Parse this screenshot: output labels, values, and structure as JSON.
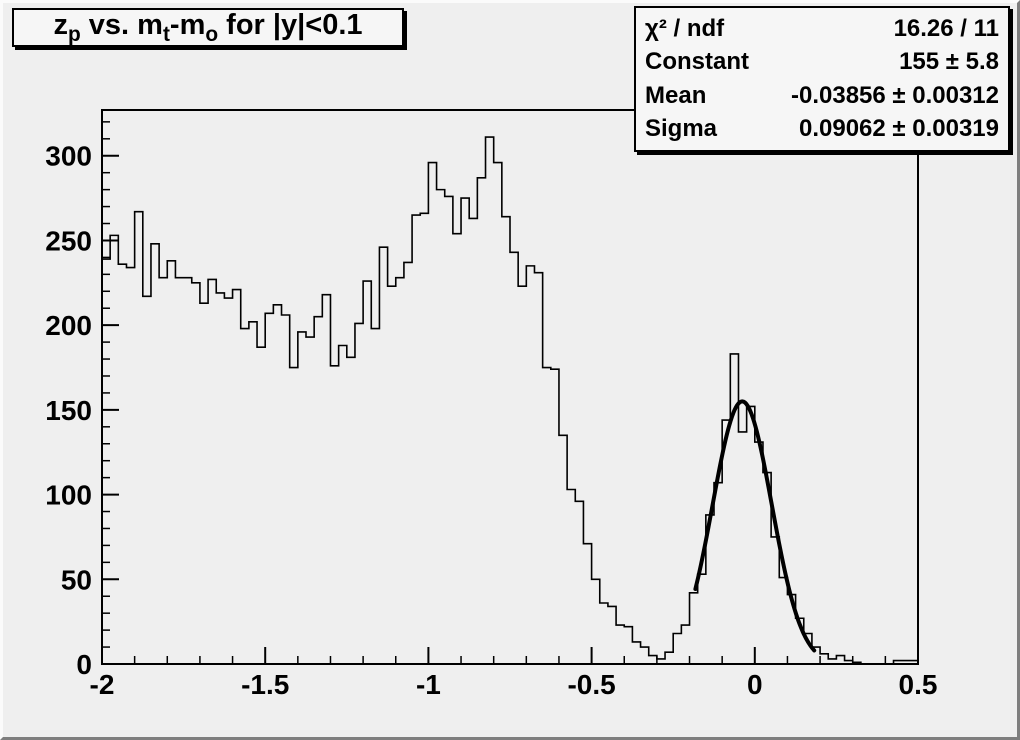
{
  "canvas": {
    "background": "#efefef",
    "box_background": "#f6f6f6",
    "line_color": "#000000"
  },
  "title": {
    "text": "z_p vs. m_t-m_o for |y|<0.1",
    "parts": [
      {
        "t": "z"
      },
      {
        "t": "p",
        "sub": true
      },
      {
        "t": " vs. m"
      },
      {
        "t": "t",
        "sub": true
      },
      {
        "t": "-m"
      },
      {
        "t": "o",
        "sub": true
      },
      {
        "t": " for |y|<0.1"
      }
    ]
  },
  "stats": {
    "rows": [
      {
        "label": "χ² / ndf",
        "value": "16.26 / 11"
      },
      {
        "label": "Constant",
        "value": "155 ± 5.8"
      },
      {
        "label": "Mean",
        "value": "-0.03856 ± 0.00312"
      },
      {
        "label": "Sigma",
        "value": "0.09062 ± 0.00319"
      }
    ]
  },
  "chart_data": {
    "type": "bar",
    "style": "root-histogram-step",
    "title": "z_p vs. m_t-m_o for |y|<0.1",
    "xlabel": "",
    "ylabel": "",
    "xlim": [
      -2.0,
      0.5
    ],
    "ylim": [
      0,
      327
    ],
    "grid": false,
    "x_start": -2.0,
    "bin_width": 0.025,
    "values": [
      239,
      253,
      236,
      234,
      267,
      217,
      248,
      228,
      238,
      228,
      228,
      225,
      213,
      227,
      219,
      216,
      221,
      198,
      202,
      187,
      207,
      212,
      206,
      175,
      196,
      193,
      205,
      218,
      176,
      188,
      181,
      201,
      226,
      198,
      246,
      223,
      228,
      237,
      265,
      266,
      296,
      280,
      276,
      254,
      275,
      263,
      287,
      311,
      296,
      264,
      243,
      223,
      235,
      231,
      175,
      174,
      135,
      103,
      96,
      71,
      50,
      36,
      34,
      23,
      22,
      13,
      10,
      5,
      3,
      7,
      18,
      23,
      42,
      53,
      88,
      107,
      144,
      183,
      137,
      152,
      131,
      113,
      75,
      51,
      41,
      27,
      18,
      10,
      6,
      3,
      5,
      2,
      1,
      0,
      0,
      0,
      0,
      2,
      2,
      2
    ],
    "x_ticks": {
      "major": [
        -2,
        -1.5,
        -1,
        -0.5,
        0,
        0.5
      ],
      "labels": [
        "-2",
        "-1.5",
        "-1",
        "-0.5",
        "0",
        "0.5"
      ],
      "minor_step": 0.1
    },
    "y_ticks": {
      "major": [
        0,
        50,
        100,
        150,
        200,
        250,
        300
      ],
      "labels": [
        "0",
        "50",
        "100",
        "150",
        "200",
        "250",
        "300"
      ],
      "minor_step": 10
    },
    "fit": {
      "type": "gaussian",
      "constant": 155,
      "mean": -0.03856,
      "sigma": 0.09062,
      "draw_range": [
        -0.182,
        0.185
      ]
    },
    "legend_position": "none"
  },
  "layout_note": "ROOT histogram with gaussian fit"
}
